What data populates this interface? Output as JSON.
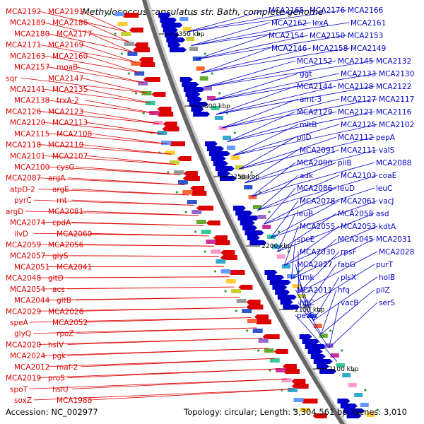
{
  "title": "Methylococcus capsulatus str. Bath, complete genome",
  "footer": {
    "accession": "Accession: NC_002977",
    "summary": "Topology: circular; Length: 3,304,561 bp; Genes: 3,010"
  },
  "colors": {
    "forward": "#dd0000",
    "reverse": "#0000cc",
    "backbone": "#888888"
  },
  "ticks": [
    "2350 kbp",
    "2300 kbp",
    "2250 kbp",
    "2200 kbp",
    "2150 kbp",
    "2100 kbp"
  ],
  "left_labels": [
    "MCA2192",
    "MCA2191",
    "MCA2189",
    "MCA2186",
    "MCA2180",
    "MCA2177",
    "MCA2171",
    "MCA2169",
    "MCA2163",
    "MCA2160",
    "MCA2157",
    "moaB",
    "sqr",
    "MCA2147",
    "MCA2141",
    "MCA2135",
    "MCA2138",
    "trxA-2",
    "MCA2126",
    "MCA2123",
    "MCA2120",
    "MCA2113",
    "MCA2115",
    "MCA2108",
    "MCA2118",
    "MCA2110",
    "MCA2101",
    "MCA2107",
    "MCA2100",
    "cysG",
    "MCA2087",
    "argA",
    "atpD-2",
    "argE",
    "pyrC",
    "rnt",
    "argD",
    "MCA2081",
    "MCA2074",
    "cpdA",
    "ilvD",
    "MCA2060",
    "MCA2059",
    "MCA2056",
    "MCA2057",
    "glyS",
    "MCA2051",
    "MCA2041",
    "MCA2048",
    "gltD",
    "MCA2054",
    "acs",
    "MCA2044",
    "gltB",
    "MCA2029",
    "MCA2026",
    "speA",
    "MCA2052",
    "glyQ",
    "rpoZ",
    "MCA2020",
    "hslV",
    "MCA2024",
    "pgk",
    "MCA2012",
    "maf-2",
    "MCA2019",
    "proS",
    "spoT",
    "hslU",
    "soxZ",
    "MCA1988"
  ],
  "right_labels": [
    "MCA2165",
    "MCA2176",
    "MCA2166",
    "MCA2162",
    "lexA",
    "MCA2161",
    "MCA2154",
    "MCA2150",
    "MCA2153",
    "MCA2146",
    "MCA2158",
    "MCA2149",
    "MCA2152",
    "MCA2145",
    "MCA2132",
    "ggt",
    "MCA2133",
    "MCA2130",
    "MCA2144",
    "MCA2128",
    "MCA2122",
    "amt-3",
    "MCA2127",
    "MCA2117",
    "MCA2129",
    "MCA2121",
    "MCA2116",
    "mltB",
    "MCA2125",
    "MCA2102",
    "pilD",
    "MCA2112",
    "pepA",
    "MCA2091",
    "MCA2111",
    "valS",
    "MCA2090",
    "pilB",
    "MCA2088",
    "adk",
    "MCA2103",
    "coaE",
    "MCA2086",
    "leuD",
    "leuC",
    "MCA2078",
    "MCA2061",
    "vacJ",
    "leuB",
    "MCA2058",
    "asd",
    "MCA2055",
    "MCA2053",
    "kdtA",
    "speE",
    "MCA2045",
    "MCA2031",
    "MCA2030",
    "rpsF",
    "MCA2028",
    "MCA2027",
    "fabG",
    "purT",
    "tmk",
    "plsX",
    "holB",
    "MCA2011",
    "hfq",
    "pilZ",
    "hflC",
    "vacB",
    "serS",
    "petC"
  ]
}
